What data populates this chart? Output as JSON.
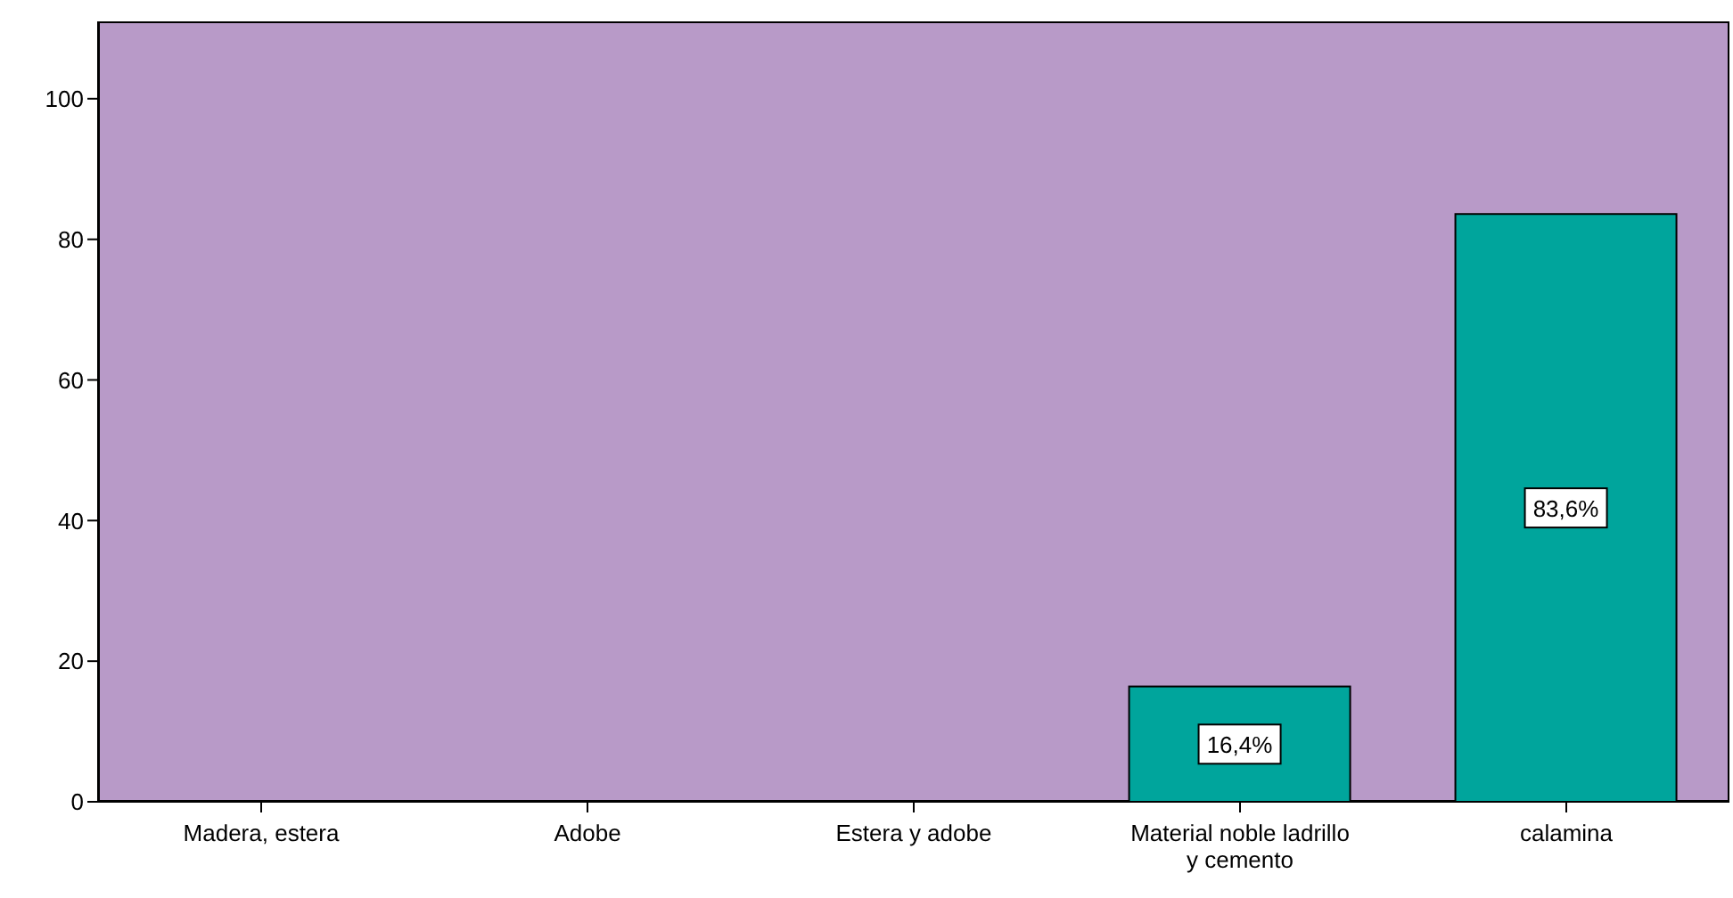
{
  "chart_data": {
    "type": "bar",
    "categories": [
      "Madera, estera",
      "Adobe",
      "Estera y adobe",
      "Material noble ladrillo y cemento",
      "calamina"
    ],
    "values": [
      0,
      0,
      0,
      16.4,
      83.6
    ],
    "value_labels": [
      null,
      null,
      null,
      "16,4%",
      "83,6%"
    ],
    "color": "#00a59c",
    "ylim": [
      0,
      111
    ],
    "yticks": [
      0,
      20,
      40,
      60,
      80,
      100
    ],
    "grid": false
  }
}
